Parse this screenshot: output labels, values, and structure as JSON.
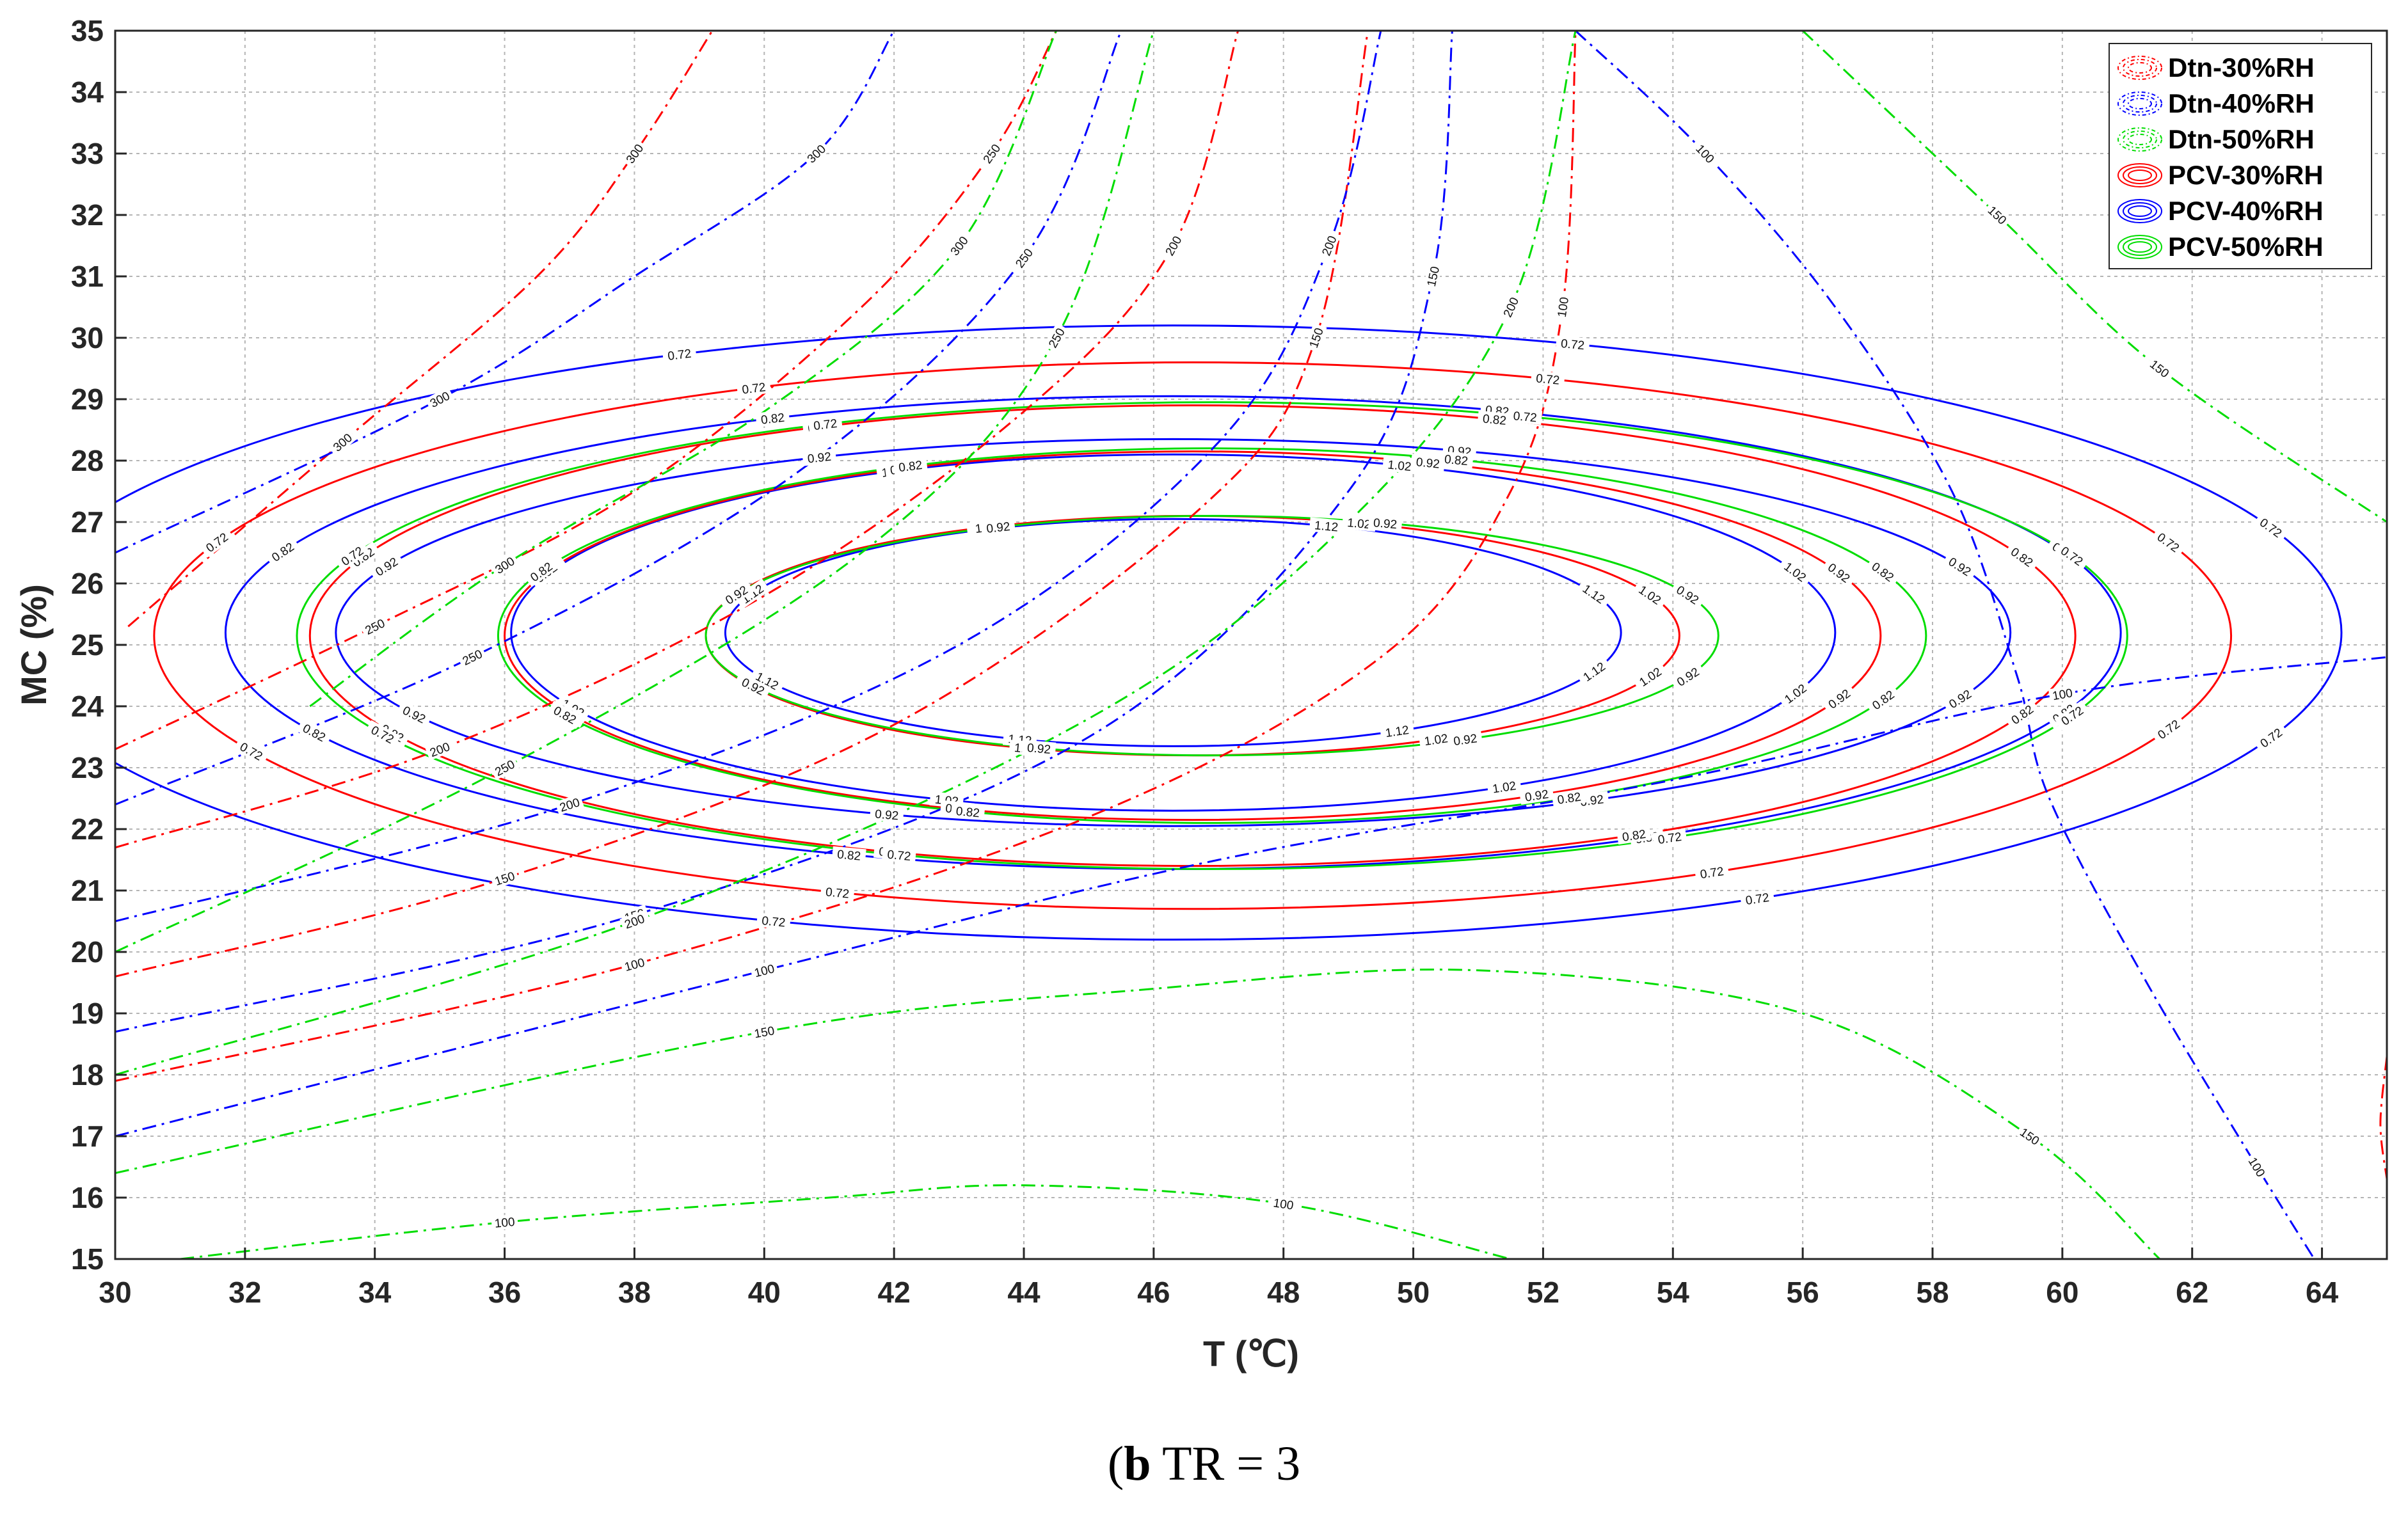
{
  "chart_data": {
    "type": "contour",
    "xlabel": "T (℃)",
    "ylabel": "MC (%)",
    "xlim": [
      30,
      65
    ],
    "ylim": [
      15,
      35
    ],
    "xticks": [
      30,
      32,
      34,
      36,
      38,
      40,
      42,
      44,
      46,
      48,
      50,
      52,
      54,
      56,
      58,
      60,
      62,
      64
    ],
    "yticks": [
      15,
      16,
      17,
      18,
      19,
      20,
      21,
      22,
      23,
      24,
      25,
      26,
      27,
      28,
      29,
      30,
      31,
      32,
      33,
      34,
      35
    ],
    "grid": true,
    "legend": {
      "placement": "top-right",
      "entries": [
        "Dtn-30%RH",
        "Dtn-40%RH",
        "Dtn-50%RH",
        "PCV-30%RH",
        "PCV-40%RH",
        "PCV-50%RH"
      ]
    },
    "colors": {
      "30%RH": "#ff0000",
      "40%RH": "#0000ff",
      "50%RH": "#00dd00"
    },
    "series": [
      {
        "name": "PCV-40%RH",
        "color": "#0000ff",
        "style": "solid",
        "levels": [
          {
            "value": "0.72",
            "center": [
              46.3,
              25.2
            ],
            "semi_axes": [
              18.0,
              5.0
            ]
          },
          {
            "value": "0.82",
            "center": [
              46.3,
              25.2
            ],
            "semi_axes": [
              14.6,
              3.85
            ]
          },
          {
            "value": "0.92",
            "center": [
              46.3,
              25.2
            ],
            "semi_axes": [
              12.9,
              3.15
            ]
          },
          {
            "value": "1.02",
            "center": [
              46.3,
              25.2
            ],
            "semi_axes": [
              10.2,
              2.9
            ]
          },
          {
            "value": "1.12",
            "center": [
              46.3,
              25.2
            ],
            "semi_axes": [
              6.9,
              1.85
            ]
          }
        ]
      },
      {
        "name": "PCV-30%RH",
        "color": "#ff0000",
        "style": "solid",
        "levels": [
          {
            "value": "0.72",
            "center": [
              46.6,
              25.15
            ],
            "semi_axes": [
              16.0,
              4.45
            ]
          },
          {
            "value": "0.82",
            "center": [
              46.6,
              25.15
            ],
            "semi_axes": [
              13.6,
              3.75
            ]
          },
          {
            "value": "0.92",
            "center": [
              46.6,
              25.15
            ],
            "semi_axes": [
              10.6,
              3.0
            ]
          },
          {
            "value": "1.02",
            "center": [
              46.6,
              25.15
            ],
            "semi_axes": [
              7.5,
              1.95
            ]
          }
        ]
      },
      {
        "name": "PCV-50%RH",
        "color": "#00dd00",
        "style": "solid",
        "levels": [
          {
            "value": "0.72",
            "center": [
              46.9,
              25.15
            ],
            "semi_axes": [
              14.1,
              3.8
            ]
          },
          {
            "value": "0.82",
            "center": [
              46.9,
              25.15
            ],
            "semi_axes": [
              11.0,
              3.05
            ]
          },
          {
            "value": "0.92",
            "center": [
              46.9,
              25.15
            ],
            "semi_axes": [
              7.8,
              1.95
            ]
          }
        ]
      },
      {
        "name": "Dtn-30%RH",
        "color": "#ff0000",
        "style": "dashdot",
        "levels": [
          {
            "value": "300",
            "points": [
              [
                30.2,
                25.3
              ],
              [
                33.5,
                28.3
              ],
              [
                36.5,
                31.0
              ],
              [
                38.0,
                33.0
              ],
              [
                39.2,
                35.0
              ]
            ]
          },
          {
            "value": "250",
            "points": [
              [
                30.0,
                23.3
              ],
              [
                34.0,
                25.3
              ],
              [
                38.0,
                27.5
              ],
              [
                41.5,
                30.5
              ],
              [
                43.5,
                33.0
              ],
              [
                44.5,
                35.0
              ]
            ]
          },
          {
            "value": "200",
            "points": [
              [
                30.0,
                21.7
              ],
              [
                35.0,
                23.3
              ],
              [
                40.0,
                25.8
              ],
              [
                44.0,
                28.8
              ],
              [
                46.3,
                31.5
              ],
              [
                47.3,
                35.0
              ]
            ]
          },
          {
            "value": "150",
            "points": [
              [
                30.0,
                19.6
              ],
              [
                36.0,
                21.2
              ],
              [
                42.0,
                23.7
              ],
              [
                46.8,
                27.3
              ],
              [
                48.5,
                30.0
              ],
              [
                49.3,
                35.0
              ]
            ]
          },
          {
            "value": "100",
            "points": [
              [
                30.0,
                17.9
              ],
              [
                38.0,
                19.8
              ],
              [
                45.0,
                22.2
              ],
              [
                49.5,
                24.8
              ],
              [
                51.5,
                27.5
              ],
              [
                52.3,
                30.5
              ],
              [
                52.5,
                35.0
              ]
            ]
          },
          {
            "value": "100",
            "points": [
              [
                65.0,
                18.3
              ],
              [
                64.9,
                17.2
              ],
              [
                65.0,
                16.3
              ]
            ]
          }
        ]
      },
      {
        "name": "Dtn-40%RH",
        "color": "#0000ff",
        "style": "dashdot",
        "levels": [
          {
            "value": "300",
            "points": [
              [
                30.0,
                26.5
              ],
              [
                35.0,
                29.0
              ],
              [
                38.0,
                31.0
              ],
              [
                40.8,
                33.0
              ],
              [
                42.0,
                35.0
              ]
            ]
          },
          {
            "value": "250",
            "points": [
              [
                30.0,
                22.4
              ],
              [
                35.5,
                24.8
              ],
              [
                40.5,
                27.8
              ],
              [
                44.0,
                31.3
              ],
              [
                45.5,
                35.0
              ]
            ]
          },
          {
            "value": "200",
            "points": [
              [
                30.0,
                20.5
              ],
              [
                37.0,
                22.4
              ],
              [
                43.0,
                25.0
              ],
              [
                47.0,
                28.3
              ],
              [
                48.7,
                31.5
              ],
              [
                49.5,
                35.0
              ]
            ]
          },
          {
            "value": "150",
            "points": [
              [
                30.0,
                18.7
              ],
              [
                38.0,
                20.6
              ],
              [
                45.0,
                23.5
              ],
              [
                49.0,
                27.5
              ],
              [
                50.3,
                31.0
              ],
              [
                50.6,
                35.0
              ]
            ]
          },
          {
            "value": "100",
            "points": [
              [
                30.0,
                17.0
              ],
              [
                40.0,
                19.7
              ],
              [
                47.0,
                21.5
              ],
              [
                54.0,
                22.8
              ],
              [
                60.0,
                24.2
              ],
              [
                65.0,
                24.8
              ]
            ]
          },
          {
            "value": "100",
            "points": [
              [
                52.5,
                35.0
              ],
              [
                54.5,
                33.0
              ],
              [
                56.5,
                30.5
              ],
              [
                58.3,
                27.5
              ],
              [
                59.3,
                24.5
              ],
              [
                59.8,
                22.5
              ],
              [
                61.3,
                19.5
              ],
              [
                63.0,
                16.5
              ],
              [
                64.0,
                14.8
              ]
            ]
          }
        ]
      },
      {
        "name": "Dtn-50%RH",
        "color": "#00dd00",
        "style": "dashdot",
        "levels": [
          {
            "value": "300",
            "points": [
              [
                33.0,
                24.0
              ],
              [
                36.0,
                26.3
              ],
              [
                40.0,
                28.8
              ],
              [
                43.0,
                31.5
              ],
              [
                44.5,
                35.0
              ]
            ]
          },
          {
            "value": "250",
            "points": [
              [
                30.0,
                20.0
              ],
              [
                36.0,
                23.0
              ],
              [
                41.5,
                26.5
              ],
              [
                44.5,
                30.0
              ],
              [
                46.0,
                35.0
              ]
            ]
          },
          {
            "value": "200",
            "points": [
              [
                30.0,
                18.0
              ],
              [
                38.0,
                20.5
              ],
              [
                45.0,
                23.8
              ],
              [
                49.0,
                27.0
              ],
              [
                51.5,
                30.5
              ],
              [
                52.5,
                35.0
              ]
            ]
          },
          {
            "value": "150",
            "points": [
              [
                30.0,
                16.4
              ],
              [
                40.0,
                18.7
              ],
              [
                46.0,
                19.4
              ],
              [
                51.0,
                19.7
              ],
              [
                56.0,
                19.0
              ],
              [
                59.5,
                17.0
              ],
              [
                61.5,
                15.0
              ]
            ]
          },
          {
            "value": "100",
            "points": [
              [
                31.0,
                15.0
              ],
              [
                36.0,
                15.6
              ],
              [
                41.0,
                16.0
              ],
              [
                44.0,
                16.2
              ],
              [
                48.0,
                15.9
              ],
              [
                51.5,
                15.0
              ]
            ]
          },
          {
            "value": "150",
            "points": [
              [
                56.0,
                35.0
              ],
              [
                59.0,
                32.0
              ],
              [
                61.5,
                29.5
              ],
              [
                65.0,
                27.0
              ]
            ]
          }
        ]
      }
    ]
  },
  "caption": {
    "bold": "b",
    "text": " TR = 3"
  }
}
